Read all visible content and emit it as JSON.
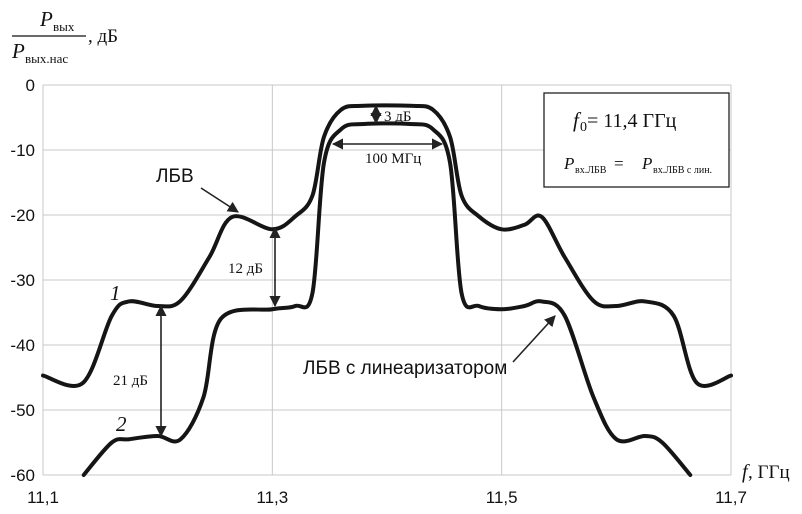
{
  "chart_data": {
    "type": "line",
    "ylabel_numerator": "P",
    "ylabel_numerator_sub": "вых",
    "ylabel_denominator": "P",
    "ylabel_denominator_sub": "вых.нас",
    "ylabel_unit": ", дБ",
    "xlabel": "f",
    "xlabel_unit": ", ГГц",
    "xlim": [
      11.1,
      11.7
    ],
    "ylim": [
      -60,
      0
    ],
    "xticks": [
      11.1,
      11.3,
      11.5,
      11.7
    ],
    "xtick_labels": [
      "11,1",
      "11,3",
      "11,5",
      "11,7"
    ],
    "yticks": [
      0,
      -10,
      -20,
      -30,
      -40,
      -50,
      -60
    ],
    "ytick_labels": [
      "0",
      "-10",
      "-20",
      "-30",
      "-40",
      "-50",
      "-60"
    ],
    "xgrid": [
      11.1,
      11.3,
      11.5,
      11.7
    ],
    "grid": true,
    "series": [
      {
        "name": "1",
        "x": [
          11.1,
          11.135,
          11.16,
          11.175,
          11.2,
          11.22,
          11.245,
          11.265,
          11.3,
          11.32,
          11.335,
          11.345,
          11.36,
          11.38,
          11.42,
          11.44,
          11.455,
          11.465,
          11.48,
          11.5,
          11.52,
          11.535,
          11.555,
          11.58,
          11.6,
          11.625,
          11.65,
          11.67,
          11.7
        ],
        "y": [
          -44.7,
          -45.8,
          -35.5,
          -33.3,
          -34.0,
          -33.2,
          -26.5,
          -20.3,
          -22.2,
          -20.2,
          -17.0,
          -8.0,
          -3.8,
          -3.2,
          -3.2,
          -3.8,
          -8.0,
          -17.0,
          -20.2,
          -22.2,
          -21.5,
          -20.3,
          -26.5,
          -33.2,
          -34.0,
          -33.3,
          -35.5,
          -45.8,
          -44.7
        ]
      },
      {
        "name": "2",
        "x": [
          11.1355,
          11.16,
          11.175,
          11.2,
          11.22,
          11.24,
          11.255,
          11.3,
          11.32,
          11.335,
          11.345,
          11.36,
          11.38,
          11.42,
          11.44,
          11.455,
          11.465,
          11.48,
          11.5,
          11.52,
          11.535,
          11.555,
          11.58,
          11.6,
          11.625,
          11.64,
          11.6645
        ],
        "y": [
          -60,
          -55.0,
          -54.5,
          -54.0,
          -54.5,
          -48.0,
          -36.0,
          -34.5,
          -34.0,
          -32.0,
          -12.0,
          -6.8,
          -6.0,
          -6.0,
          -6.8,
          -12.0,
          -32.0,
          -34.0,
          -34.5,
          -34.0,
          -33.3,
          -35.5,
          -48.0,
          -54.5,
          -54.0,
          -55.0,
          -60
        ]
      }
    ],
    "annotations": {
      "curve1_label": "ЛБВ",
      "curve2_label": "ЛБВ с линеаризатором",
      "delta_3": "3 дБ",
      "delta_100": "100 МГц",
      "delta_12": "12 дБ",
      "delta_21": "21 дБ",
      "num_1": "1",
      "num_2": "2"
    },
    "legend_box": {
      "f0_symbol": "f",
      "f0_sub": "0",
      "f0_value": " = 11,4 ГГц",
      "eq_left": "P",
      "eq_left_sub": "вх.ЛБВ",
      "eq_sign": " = ",
      "eq_right": "P",
      "eq_right_sub": "вх.ЛБВ с лин."
    }
  }
}
